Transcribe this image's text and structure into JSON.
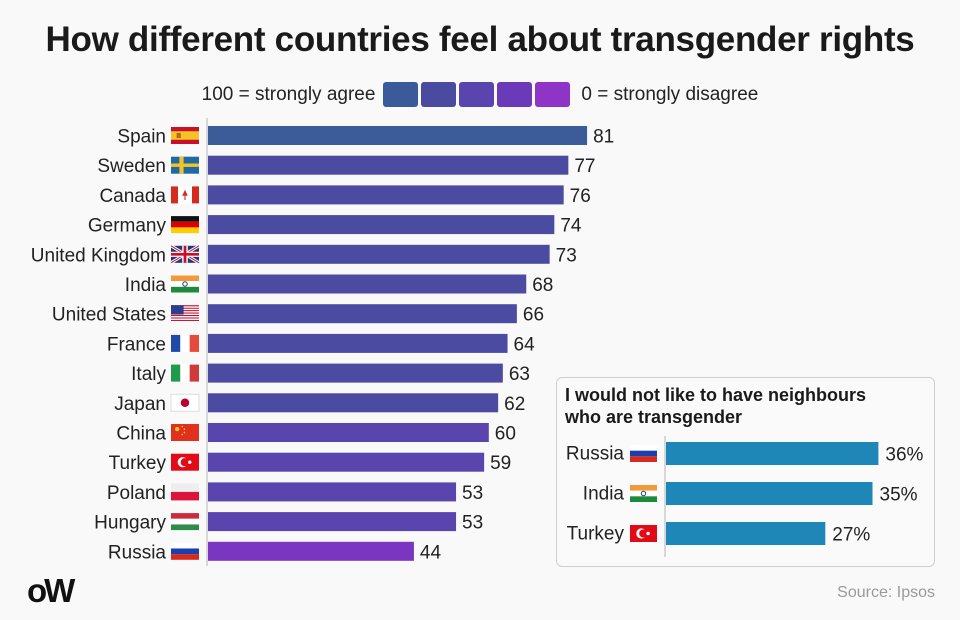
{
  "title": "How different countries feel about transgender rights",
  "legend": {
    "left_label": "100 = strongly agree",
    "right_label": "0 = strongly disagree",
    "swatches": [
      "#3a5a9a",
      "#4a4aa0",
      "#5a44ae",
      "#6b3ab8",
      "#8e35c8"
    ]
  },
  "chart_data": [
    {
      "type": "bar",
      "orientation": "horizontal",
      "title": "How different countries feel about transgender rights",
      "xlabel": "",
      "ylabel": "",
      "xlim": [
        0,
        100
      ],
      "grid": false,
      "categories": [
        "Spain",
        "Sweden",
        "Canada",
        "Germany",
        "United Kingdom",
        "India",
        "United States",
        "France",
        "Italy",
        "Japan",
        "China",
        "Turkey",
        "Poland",
        "Hungary",
        "Russia"
      ],
      "flags": [
        "flag-spain",
        "flag-sweden",
        "flag-canada",
        "flag-germany",
        "flag-uk",
        "flag-india",
        "flag-usa",
        "flag-france",
        "flag-italy",
        "flag-japan",
        "flag-china",
        "flag-turkey",
        "flag-poland",
        "flag-hungary",
        "flag-russia"
      ],
      "values": [
        81,
        77,
        76,
        74,
        73,
        68,
        66,
        64,
        63,
        62,
        60,
        59,
        53,
        53,
        44
      ],
      "data_labels": [
        "81",
        "77",
        "76",
        "74",
        "73",
        "68",
        "66",
        "64",
        "63",
        "62",
        "60",
        "59",
        "53",
        "53",
        "44"
      ],
      "colors": [
        "#3b5b99",
        "#4b4ba1",
        "#4b4ba1",
        "#4b4ba1",
        "#4b4ba1",
        "#4b4ba1",
        "#4b4ba1",
        "#4b4ba1",
        "#4b4ba1",
        "#4b4ba1",
        "#5a44ad",
        "#5a44ad",
        "#5a44ad",
        "#5a44ad",
        "#7a36c0"
      ]
    },
    {
      "type": "bar",
      "orientation": "horizontal",
      "title": "I would not like to have neighbours who are transgender",
      "xlabel": "",
      "ylabel": "",
      "xlim": [
        0,
        40
      ],
      "grid": false,
      "unit": "%",
      "categories": [
        "Russia",
        "India",
        "Turkey"
      ],
      "flags": [
        "flag-russia",
        "flag-india",
        "flag-turkey"
      ],
      "values": [
        36,
        35,
        27
      ],
      "data_labels": [
        "36%",
        "35%",
        "27%"
      ],
      "color": "#1f86b8"
    }
  ],
  "inset": {
    "title_line1": "I would not like to have neighbours",
    "title_line2": "who are transgender"
  },
  "footer": {
    "logo": "oW",
    "source": "Source: Ipsos"
  }
}
